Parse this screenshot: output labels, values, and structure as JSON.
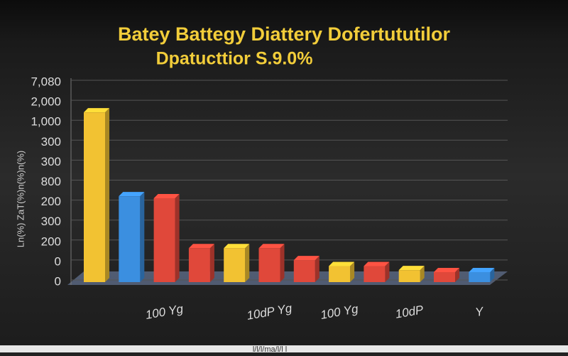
{
  "chart_data": {
    "type": "bar3d",
    "title": "Batey Battegy Diattery Dofertututilor",
    "subtitle": "Dpatucttior S.9.0%",
    "y_label": "Ln(%) ZaT(%)n(%)n(%)",
    "x_label": "l/l/l/ma/l/l l",
    "categories": [
      null,
      null,
      "100 Yg",
      null,
      null,
      "10dP Yg",
      null,
      "100 Yg",
      null,
      "10dP",
      null,
      "Y"
    ],
    "values": [
      8.5,
      4.3,
      4.2,
      1.7,
      1.7,
      1.7,
      1.1,
      0.8,
      0.8,
      0.6,
      0.5,
      0.5
    ],
    "colors": [
      "#f2c232",
      "#3b8fe0",
      "#e0483a",
      "#e0483a",
      "#f2c232",
      "#e0483a",
      "#e0483a",
      "#f2c232",
      "#e0483a",
      "#f2c232",
      "#e0483a",
      "#3b8fe0"
    ],
    "ylim": [
      0,
      10
    ],
    "yticks": [
      {
        "value": 0,
        "label": "0"
      },
      {
        "value": 1,
        "label": "0"
      },
      {
        "value": 2,
        "label": "200"
      },
      {
        "value": 3,
        "label": "300"
      },
      {
        "value": 4,
        "label": "200"
      },
      {
        "value": 5,
        "label": "800"
      },
      {
        "value": 6,
        "label": "300"
      },
      {
        "value": 7,
        "label": "300"
      },
      {
        "value": 8,
        "label": "1,000"
      },
      {
        "value": 9,
        "label": "2,000"
      },
      {
        "value": 10,
        "label": "7,080"
      }
    ],
    "grid": true
  }
}
